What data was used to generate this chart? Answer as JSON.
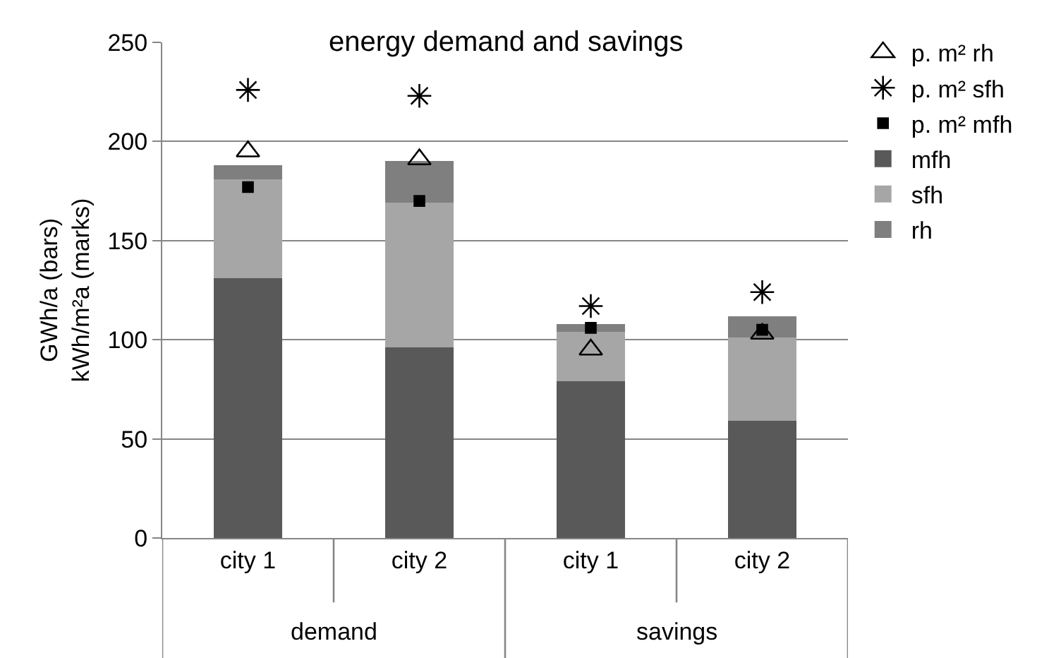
{
  "chart_data": {
    "type": "bar",
    "title": "energy demand and savings",
    "ylabel": "GWh/a (bars)\nkWh/m²a (marks)",
    "categories": [
      "city 1",
      "city 2",
      "city 1",
      "city 2"
    ],
    "annotations": [
      "demand",
      "savings"
    ],
    "stacked": true,
    "ylim": [
      0,
      250
    ],
    "yticks": [
      0,
      50,
      100,
      150,
      200,
      250
    ],
    "grid": "y",
    "legend": "right",
    "series": [
      {
        "name": "mfh",
        "color": "#595959",
        "values": [
          131,
          96,
          79,
          59
        ]
      },
      {
        "name": "sfh",
        "color": "#a6a6a6",
        "values": [
          50,
          73,
          25,
          42
        ]
      },
      {
        "name": "rh",
        "color": "#7f7f7f",
        "values": [
          7,
          21,
          4,
          11
        ]
      },
      {
        "name": "p. m² mfh",
        "type": "scatter",
        "marker": "square",
        "color": "#000000",
        "values": [
          177,
          170,
          106,
          105
        ]
      },
      {
        "name": "p. m² sfh",
        "type": "scatter",
        "marker": "cross",
        "color": "#000000",
        "values": [
          226,
          223,
          117,
          124
        ]
      },
      {
        "name": "p. m² rh",
        "type": "scatter",
        "marker": "triangle",
        "color": "#000000",
        "values": [
          195,
          191,
          95,
          103
        ]
      }
    ]
  }
}
